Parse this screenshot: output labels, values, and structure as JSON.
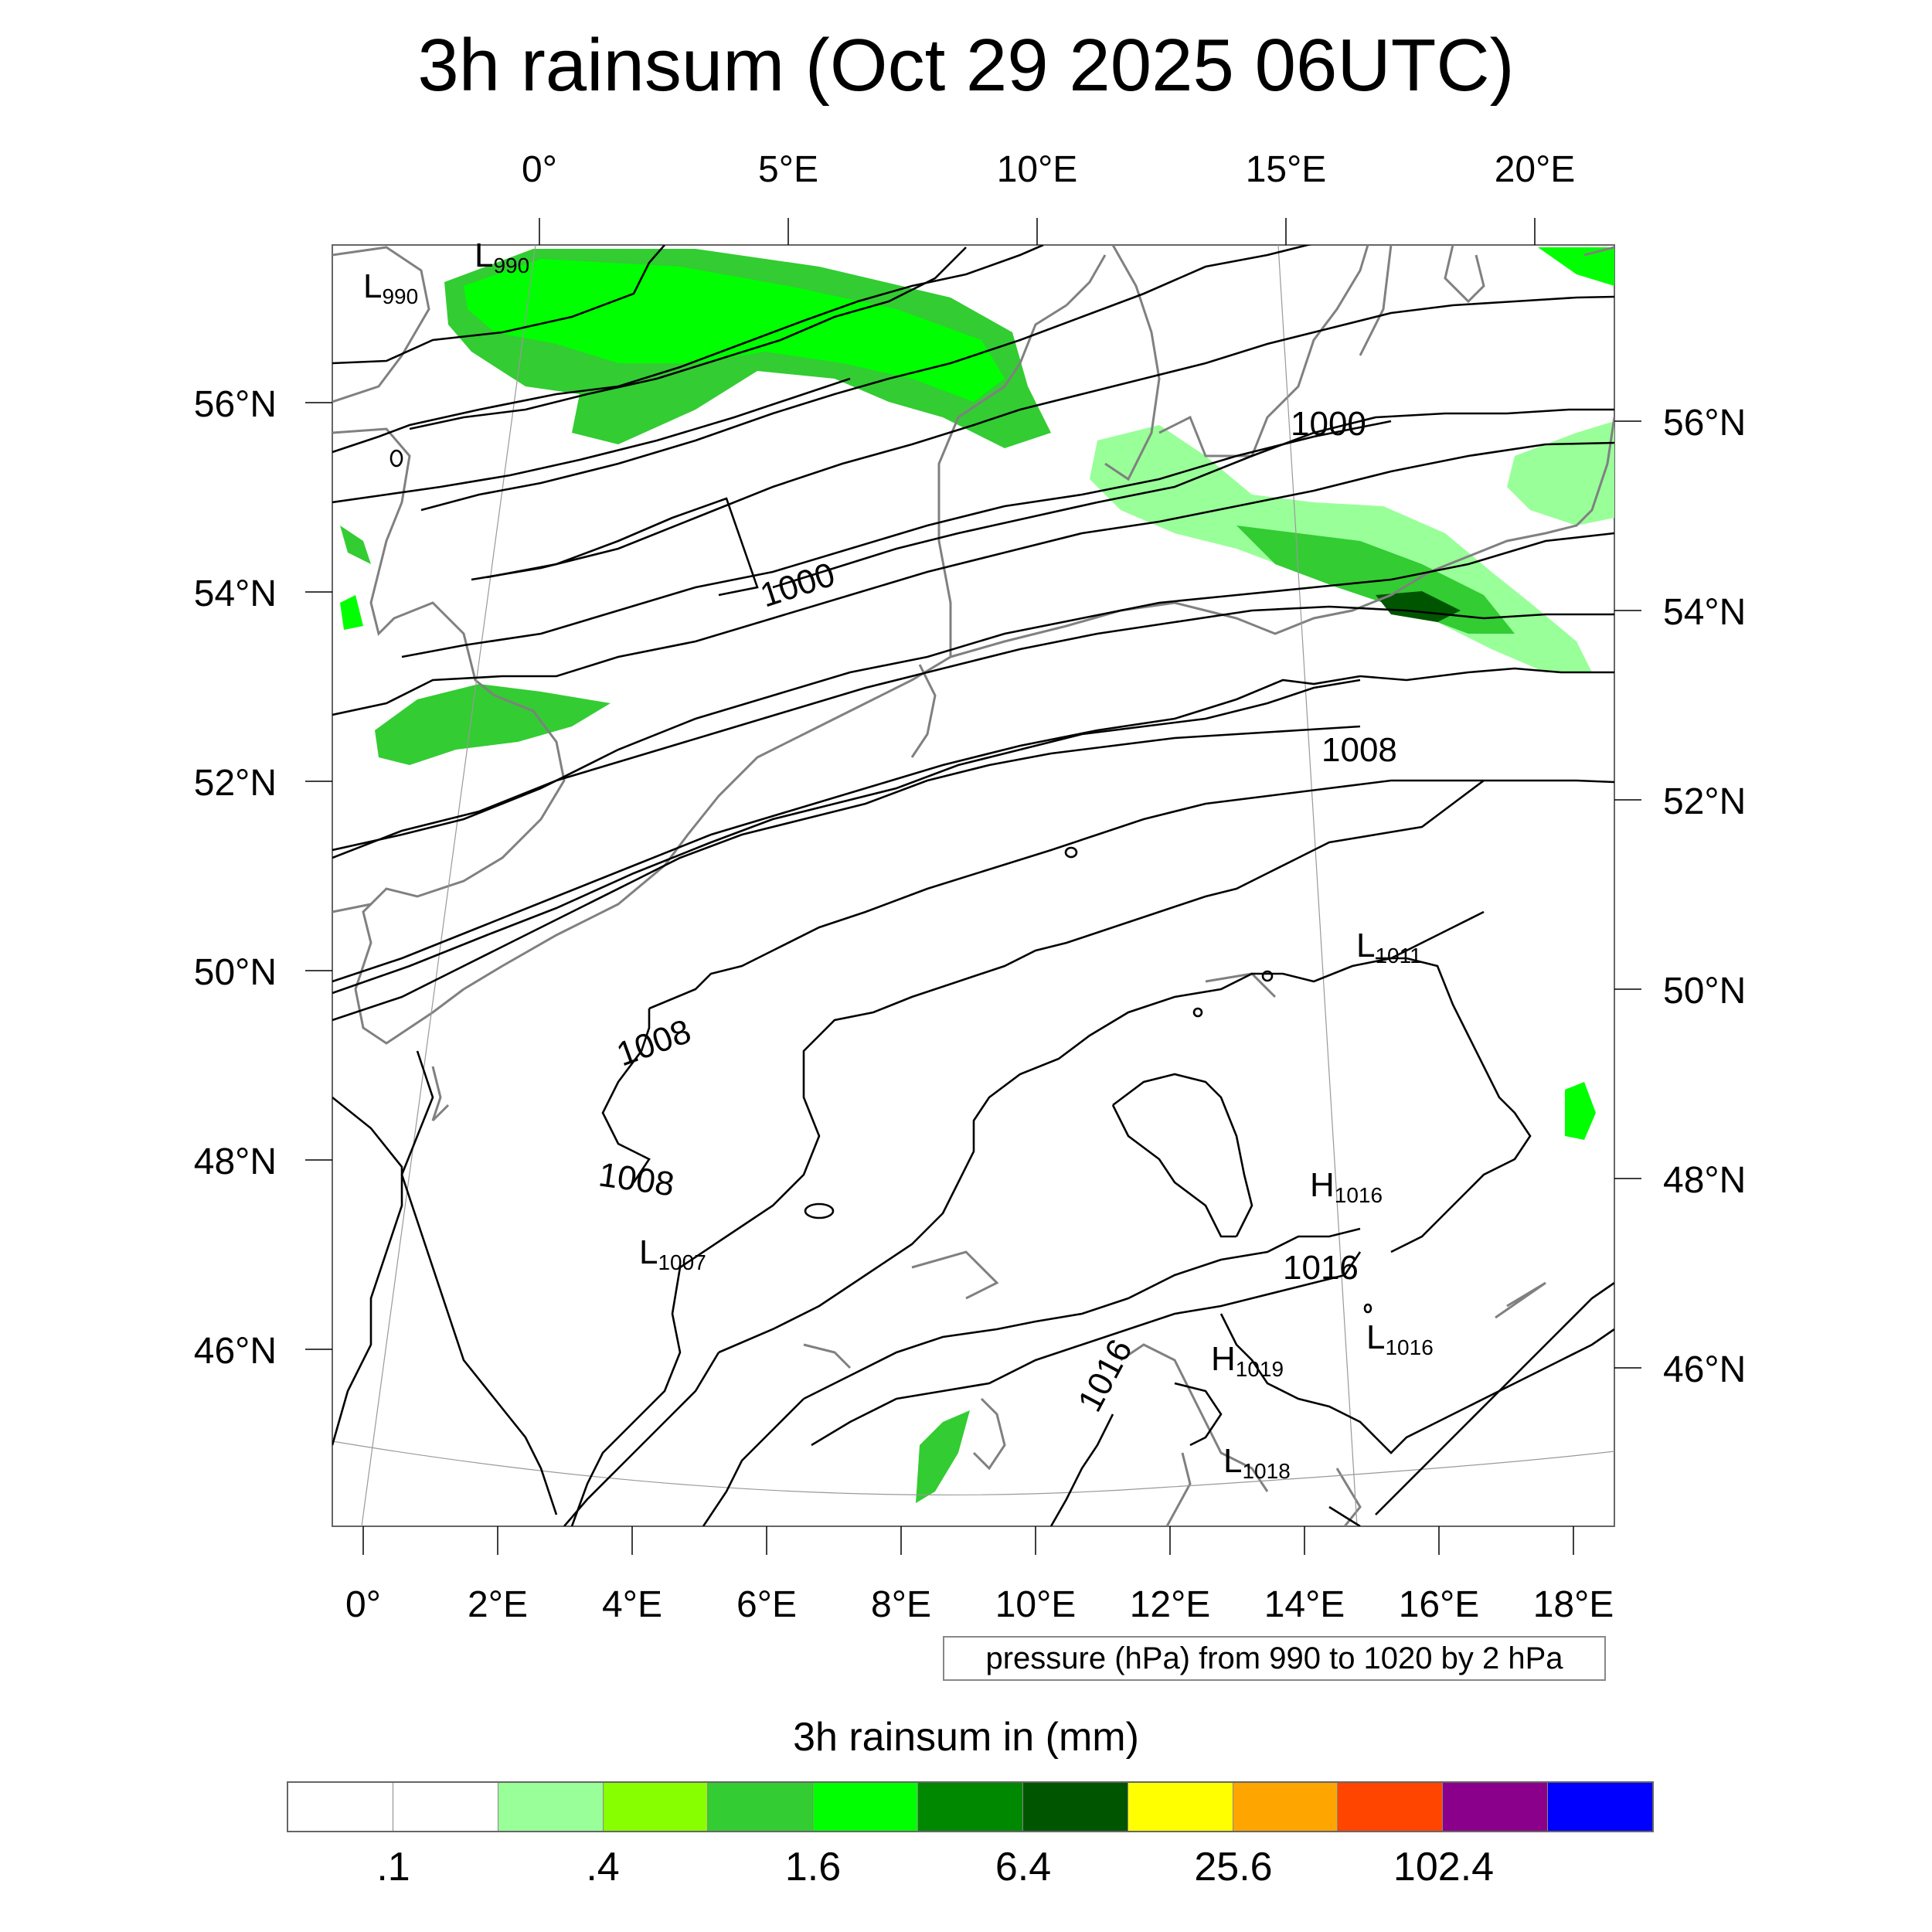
{
  "title": "3h rainsum (Oct 29 2025 06UTC)",
  "map": {
    "top_lon_labels": [
      "0°",
      "5°E",
      "10°E",
      "15°E",
      "20°E"
    ],
    "bottom_lon_labels": [
      "0°",
      "2°E",
      "4°E",
      "6°E",
      "8°E",
      "10°E",
      "12°E",
      "14°E",
      "16°E",
      "18°E"
    ],
    "left_lat_labels": [
      "56°N",
      "54°N",
      "52°N",
      "50°N",
      "48°N",
      "46°N"
    ],
    "right_lat_labels": [
      "56°N",
      "54°N",
      "52°N",
      "50°N",
      "48°N",
      "46°N"
    ],
    "contour_labels": [
      "1000",
      "1000",
      "1008",
      "1008",
      "1008",
      "1016",
      "1016"
    ],
    "pressure_centers": [
      {
        "kind": "L",
        "value": "990"
      },
      {
        "kind": "L",
        "value": "990"
      },
      {
        "kind": "L",
        "value": "1011"
      },
      {
        "kind": "H",
        "value": "1016"
      },
      {
        "kind": "L",
        "value": "1007"
      },
      {
        "kind": "L",
        "value": "1016"
      },
      {
        "kind": "H",
        "value": "1019"
      },
      {
        "kind": "L",
        "value": "1018"
      }
    ],
    "pressure_note": "pressure (hPa) from 990 to 1020 by 2 hPa"
  },
  "colorbar": {
    "title": "3h rainsum in (mm)",
    "colors": [
      "#ffffff",
      "#ffffff",
      "#99ff99",
      "#88ff00",
      "#33cc33",
      "#00ff00",
      "#008800",
      "#005500",
      "#ffff00",
      "#ffa500",
      "#ff4500",
      "#8b008b",
      "#0000ff"
    ],
    "labels": [
      ".1",
      ".4",
      "1.6",
      "6.4",
      "25.6",
      "102.4"
    ]
  },
  "rain_colors": {
    "light": "#99ff99",
    "yellowgreen": "#88ff00",
    "medium": "#33cc33",
    "bright": "#00ff00",
    "dark": "#008800",
    "darkest": "#005500"
  }
}
